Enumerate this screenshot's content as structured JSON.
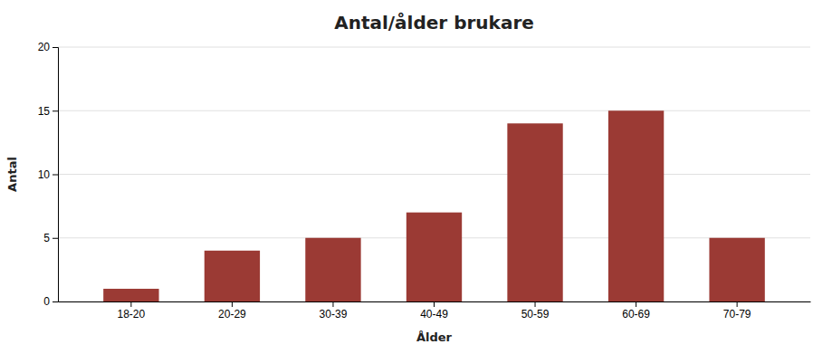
{
  "chart_data": {
    "type": "bar",
    "title": "Antal/ålder brukare",
    "xlabel": "Ålder",
    "ylabel": "Antal",
    "categories": [
      "18-20",
      "20-29",
      "30-39",
      "40-49",
      "50-59",
      "60-69",
      "70-79"
    ],
    "values": [
      1,
      4,
      5,
      7,
      14,
      15,
      5
    ],
    "color": "#9B3A34",
    "ylim": [
      0,
      20
    ],
    "yticks": [
      0,
      5,
      10,
      15,
      20
    ],
    "grid": true
  }
}
